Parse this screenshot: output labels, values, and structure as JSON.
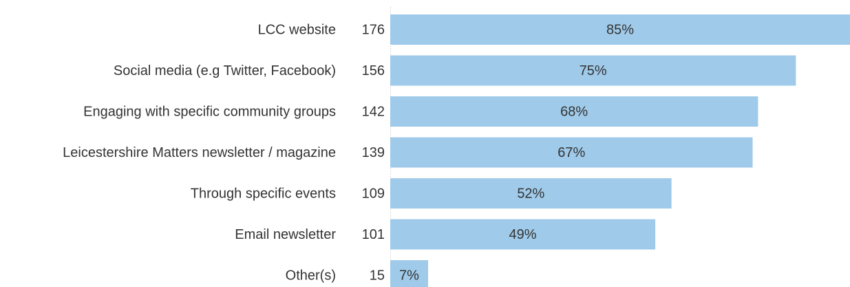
{
  "chart_data": {
    "type": "bar",
    "orientation": "horizontal",
    "categories": [
      "LCC website",
      "Social media (e.g Twitter, Facebook)",
      "Engaging with specific community groups",
      "Leicestershire Matters newsletter / magazine",
      "Through specific events",
      "Email newsletter",
      "Other(s)"
    ],
    "counts": [
      176,
      156,
      142,
      139,
      109,
      101,
      15
    ],
    "values": [
      85,
      75,
      68,
      67,
      52,
      49,
      7
    ],
    "value_labels": [
      "85%",
      "75%",
      "68%",
      "67%",
      "52%",
      "49%",
      "7%"
    ],
    "color": "#9fcae9"
  }
}
